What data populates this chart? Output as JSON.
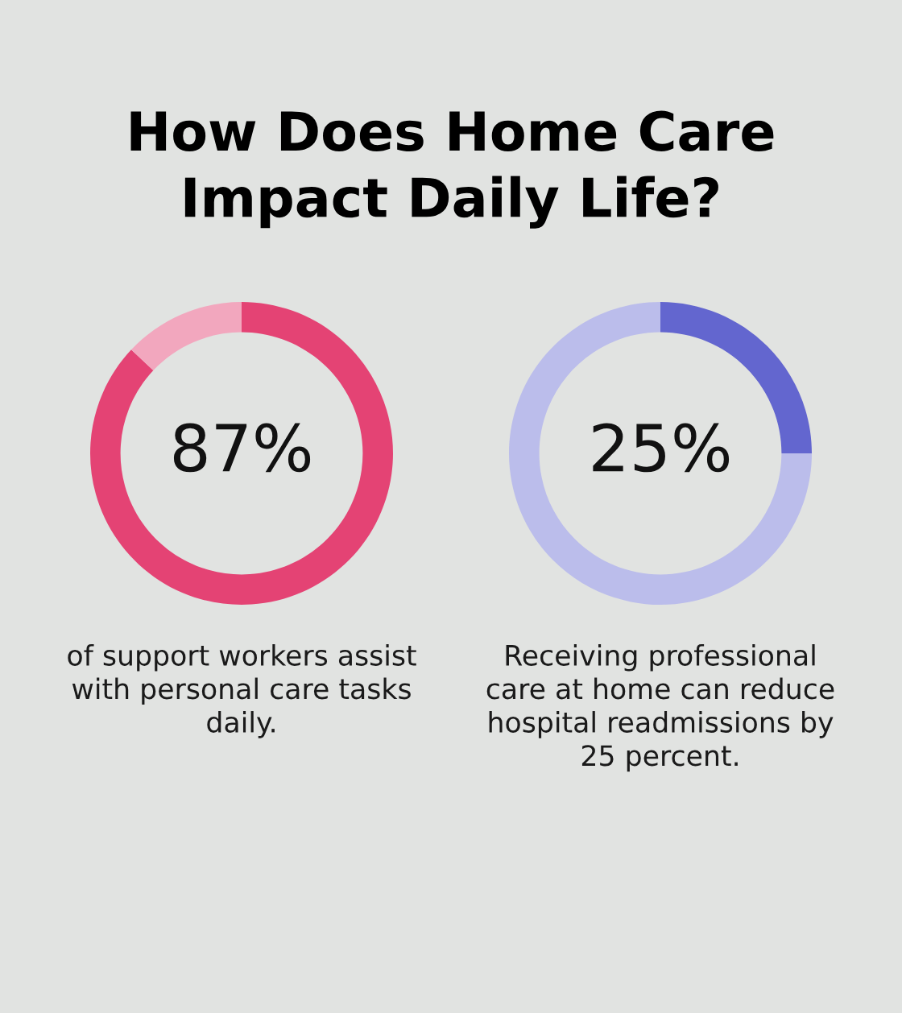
{
  "chart_data": [
    {
      "type": "donut",
      "title": "How Does Home Care Impact Daily Life?",
      "categories": [
        null,
        null
      ],
      "values": [
        87,
        13
      ],
      "colors": [
        "#e44374",
        "#f2a7be"
      ],
      "value_labels": [
        "87%",
        null
      ],
      "annotations": [
        "of support workers assist with personal care tasks daily."
      ]
    },
    {
      "type": "donut",
      "categories": [
        null,
        null
      ],
      "values": [
        25,
        75
      ],
      "colors": [
        "#6366cf",
        "#bbbdeb"
      ],
      "value_labels": [
        "25%",
        null
      ],
      "annotations": [
        "Receiving professional care at home can reduce hospital readmissions by 25 percent."
      ]
    }
  ]
}
